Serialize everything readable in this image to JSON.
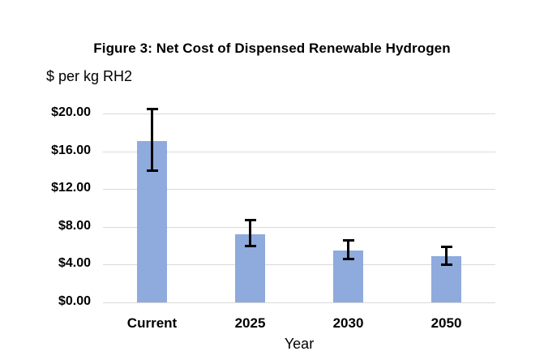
{
  "figure": {
    "title": "Figure 3: Net Cost of Dispensed Renewable Hydrogen",
    "y_axis_unit": "$ per kg RH2",
    "x_axis_title": "Year"
  },
  "chart_data": {
    "type": "bar",
    "title": "Figure 3: Net Cost of Dispensed Renewable Hydrogen",
    "xlabel": "Year",
    "ylabel": "$ per kg RH2",
    "categories": [
      "Current",
      "2025",
      "2030",
      "2050"
    ],
    "values": [
      17.1,
      7.2,
      5.5,
      4.9
    ],
    "error_bars": {
      "high": [
        20.6,
        8.8,
        6.7,
        6.0
      ],
      "low": [
        13.8,
        5.8,
        4.5,
        3.9
      ]
    },
    "y_ticks": [
      {
        "label": "$20.00",
        "value": 20
      },
      {
        "label": "$16.00",
        "value": 16
      },
      {
        "label": "$12.00",
        "value": 12
      },
      {
        "label": "$8.00",
        "value": 8
      },
      {
        "label": "$4.00",
        "value": 4
      },
      {
        "label": "$0.00",
        "value": 0
      }
    ],
    "ylim": [
      0,
      20
    ],
    "grid": true,
    "legend": false,
    "colors": {
      "bar_fill": "#8FAADC",
      "gridline": "#D9D9D9",
      "error_bar": "#000000",
      "text": "#000000"
    }
  }
}
